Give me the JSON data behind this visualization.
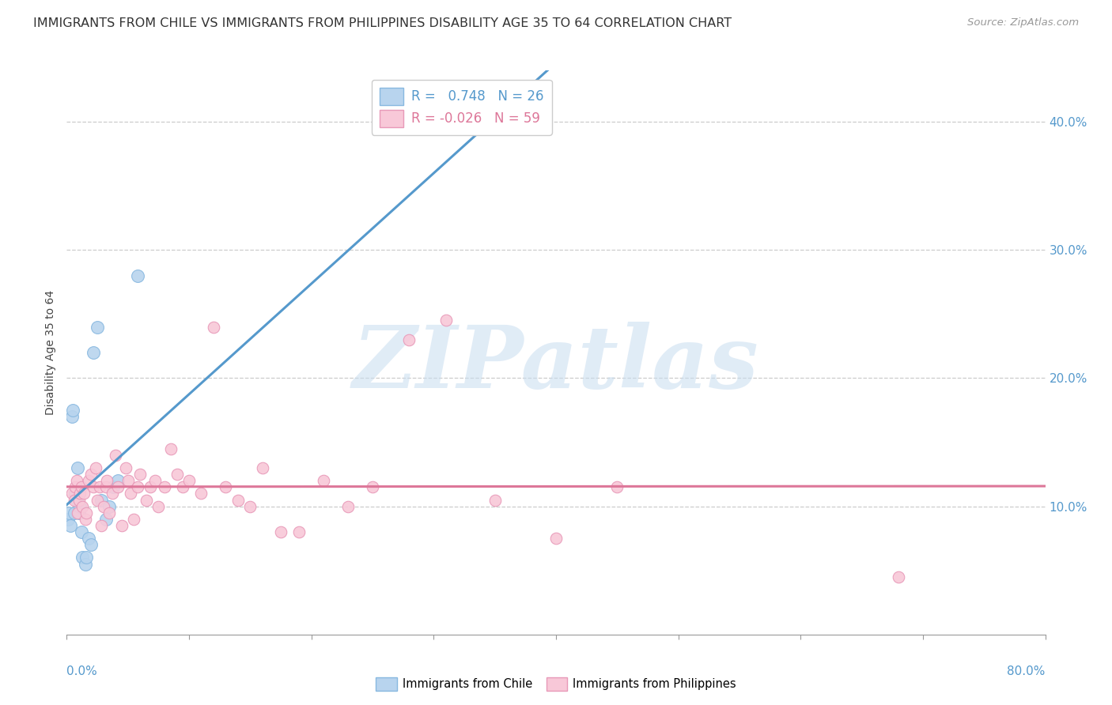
{
  "title": "IMMIGRANTS FROM CHILE VS IMMIGRANTS FROM PHILIPPINES DISABILITY AGE 35 TO 64 CORRELATION CHART",
  "source": "Source: ZipAtlas.com",
  "ylabel": "Disability Age 35 to 64",
  "ylabel_right_vals": [
    0.1,
    0.2,
    0.3,
    0.4
  ],
  "xlim": [
    0.0,
    0.8
  ],
  "ylim": [
    0.0,
    0.44
  ],
  "R_chile": 0.748,
  "N_chile": 26,
  "R_philippines": -0.026,
  "N_philippines": 59,
  "color_chile_fill": "#b8d4ee",
  "color_chile_edge": "#88b8e0",
  "color_chile_line": "#5599cc",
  "color_philippines_fill": "#f8c8d8",
  "color_philippines_edge": "#e899b8",
  "color_philippines_line": "#dd7799",
  "chile_x": [
    0.001,
    0.002,
    0.003,
    0.004,
    0.005,
    0.006,
    0.007,
    0.008,
    0.009,
    0.01,
    0.011,
    0.012,
    0.013,
    0.015,
    0.016,
    0.018,
    0.02,
    0.022,
    0.025,
    0.028,
    0.032,
    0.035,
    0.038,
    0.042,
    0.058,
    0.382
  ],
  "chile_y": [
    0.09,
    0.095,
    0.085,
    0.17,
    0.175,
    0.095,
    0.11,
    0.105,
    0.13,
    0.095,
    0.1,
    0.08,
    0.06,
    0.055,
    0.06,
    0.075,
    0.07,
    0.22,
    0.24,
    0.105,
    0.09,
    0.1,
    0.115,
    0.12,
    0.28,
    0.42
  ],
  "philippines_x": [
    0.004,
    0.006,
    0.007,
    0.008,
    0.009,
    0.01,
    0.011,
    0.012,
    0.013,
    0.014,
    0.015,
    0.016,
    0.018,
    0.02,
    0.022,
    0.024,
    0.025,
    0.027,
    0.028,
    0.03,
    0.032,
    0.033,
    0.035,
    0.037,
    0.04,
    0.042,
    0.045,
    0.048,
    0.05,
    0.052,
    0.055,
    0.058,
    0.06,
    0.065,
    0.068,
    0.072,
    0.075,
    0.08,
    0.085,
    0.09,
    0.095,
    0.1,
    0.11,
    0.12,
    0.13,
    0.14,
    0.15,
    0.16,
    0.175,
    0.19,
    0.21,
    0.23,
    0.25,
    0.28,
    0.31,
    0.35,
    0.4,
    0.45,
    0.68
  ],
  "philippines_y": [
    0.11,
    0.105,
    0.115,
    0.12,
    0.095,
    0.105,
    0.11,
    0.115,
    0.1,
    0.11,
    0.09,
    0.095,
    0.12,
    0.125,
    0.115,
    0.13,
    0.105,
    0.115,
    0.085,
    0.1,
    0.115,
    0.12,
    0.095,
    0.11,
    0.14,
    0.115,
    0.085,
    0.13,
    0.12,
    0.11,
    0.09,
    0.115,
    0.125,
    0.105,
    0.115,
    0.12,
    0.1,
    0.115,
    0.145,
    0.125,
    0.115,
    0.12,
    0.11,
    0.24,
    0.115,
    0.105,
    0.1,
    0.13,
    0.08,
    0.08,
    0.12,
    0.1,
    0.115,
    0.23,
    0.245,
    0.105,
    0.075,
    0.115,
    0.045
  ],
  "title_fontsize": 11.5,
  "source_fontsize": 9.5,
  "axis_label_fontsize": 10,
  "tick_fontsize": 11,
  "legend_fontsize": 12,
  "watermark_text": "ZIPatlas",
  "x_tick_positions": [
    0.0,
    0.1,
    0.2,
    0.3,
    0.4,
    0.5,
    0.6,
    0.7,
    0.8
  ]
}
